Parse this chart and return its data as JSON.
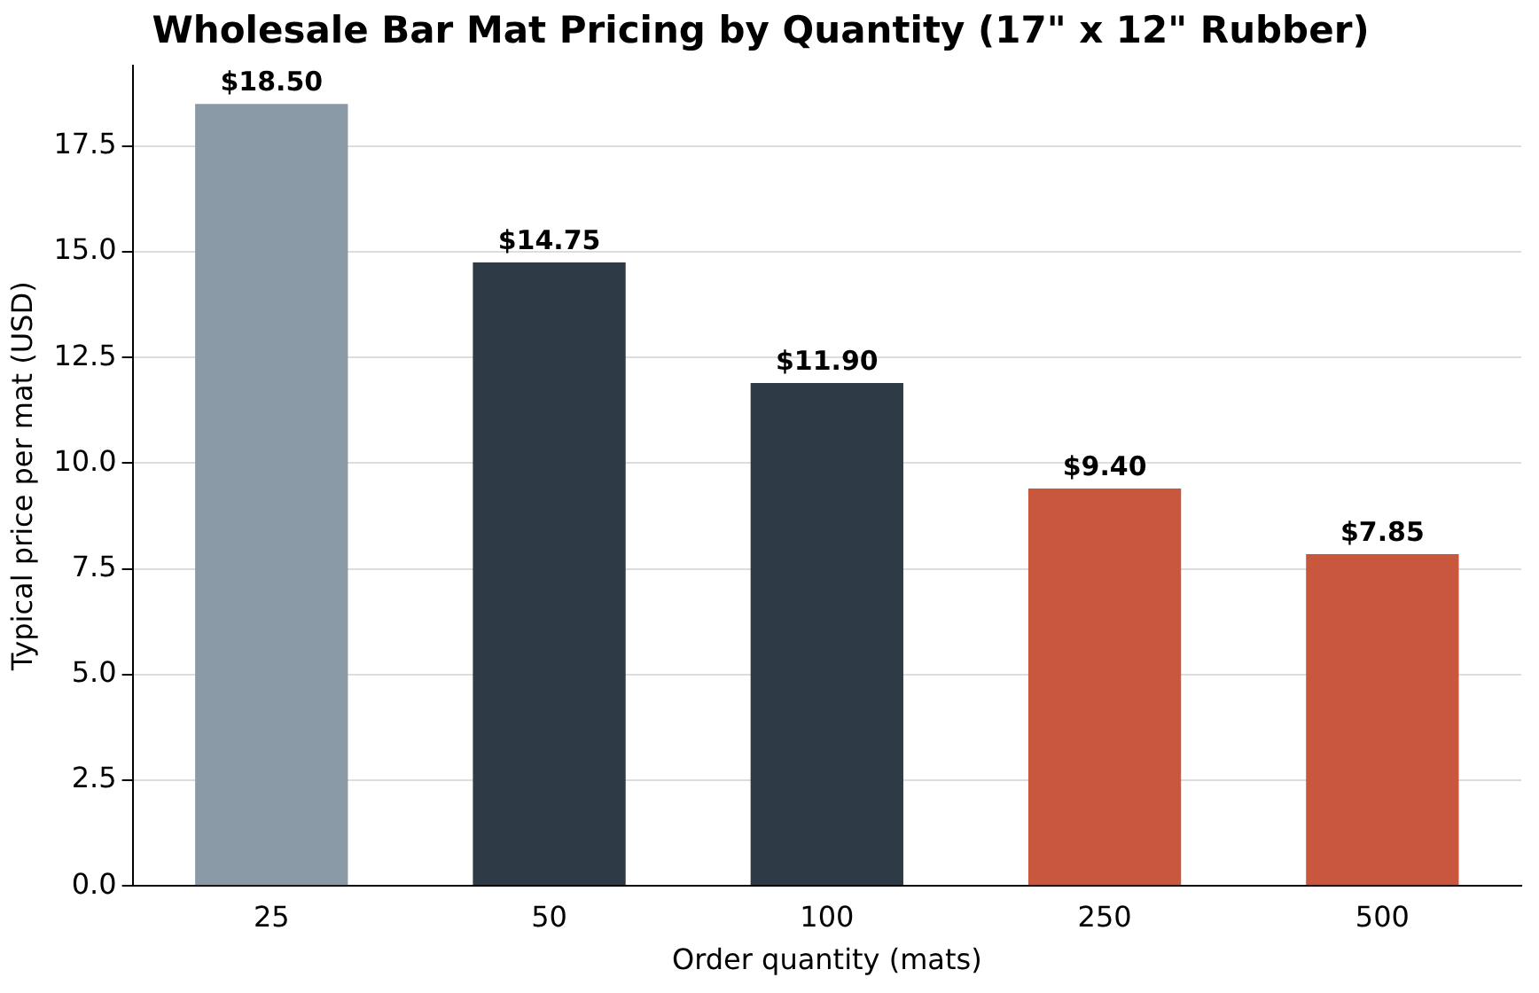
{
  "chart_data": {
    "type": "bar",
    "title": "Wholesale Bar Mat Pricing by Quantity (17\" x 12\" Rubber)",
    "xlabel": "Order quantity (mats)",
    "ylabel": "Typical price per mat (USD)",
    "categories": [
      "25",
      "50",
      "100",
      "250",
      "500"
    ],
    "values": [
      18.5,
      14.75,
      11.9,
      9.4,
      7.85
    ],
    "colors": [
      "#8a99a6",
      "#2e3a46",
      "#2e3a46",
      "#c8573e",
      "#c8573e"
    ],
    "value_labels": [
      "$18.50",
      "$14.75",
      "$11.90",
      "$9.40",
      "$7.85"
    ],
    "ylim": [
      0,
      19.4
    ],
    "yticks": [
      {
        "value": 0,
        "label": "0.0"
      },
      2.5,
      {
        "value": 5,
        "label": "5.0"
      },
      7.5,
      {
        "value": 10,
        "label": "10.0"
      },
      12.5,
      {
        "value": 15,
        "label": "15.0"
      },
      17.5
    ],
    "grid": "y",
    "legend": false
  }
}
